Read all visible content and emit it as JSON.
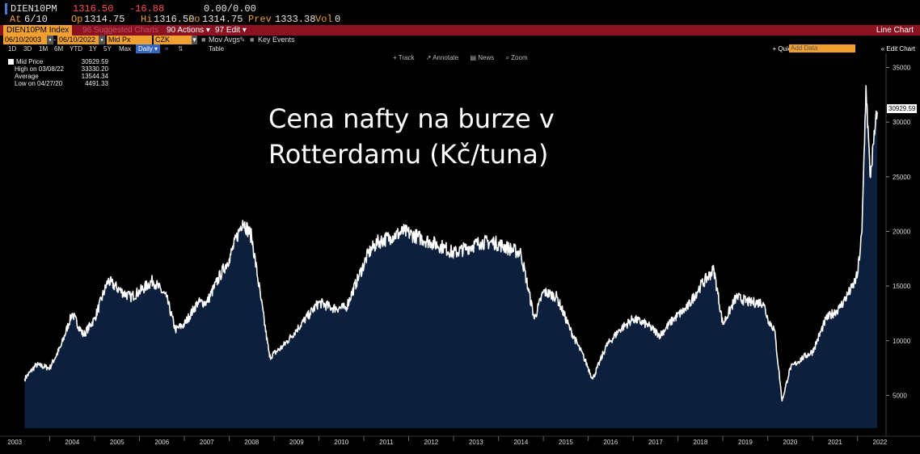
{
  "header": {
    "ticker": "DIEN10PM",
    "last": "1316.50",
    "change": "-16.88",
    "change2": "0.00/0.00",
    "at_label": "At",
    "at_value": "6/10",
    "op_label": "Op",
    "op_value": "1314.75",
    "hi_label": "Hi",
    "hi_value": "1316.50",
    "lo_label": "Lo",
    "lo_value": "1314.75",
    "prev_label": "Prev",
    "prev_value": "1333.38",
    "vol_label": "Vol",
    "vol_value": "0"
  },
  "toolbar": {
    "security": "DIEN10PM Index",
    "suggested": "96 Suggested Charts",
    "actions": "90 Actions ▾",
    "edit": "97 Edit ▾",
    "mode": "Line Chart"
  },
  "params": {
    "start_date": "06/10/2003",
    "end_date": "06/10/2022",
    "field": "Mid Px",
    "currency": "CZK",
    "mov_avgs": "Mov Avgs",
    "key_events": "Key Events"
  },
  "range": {
    "buttons": [
      "1D",
      "3D",
      "1M",
      "6M",
      "YTD",
      "1Y",
      "5Y",
      "Max"
    ],
    "period": "Daily ▾",
    "table": "Table",
    "quick_add": "+ Quick-Add ▾",
    "add_data": "Add Data",
    "edit_chart": "« Edit Chart"
  },
  "tools": [
    "+ Track",
    "↗ Annotate",
    "▤ News",
    "⌕ Zoom"
  ],
  "legend": [
    {
      "label": "Mid Price",
      "value": "30929.59"
    },
    {
      "label": "High on 03/08/22",
      "value": "33330.20"
    },
    {
      "label": "Average",
      "value": "13544.34"
    },
    {
      "label": "Low on 04/27/20",
      "value": "4491.33"
    }
  ],
  "overlay_title": "Cena nafty na burze v Rotterdamu (Kč/tuna)",
  "colors": {
    "fill": "#0c1f3d",
    "line": "#ffffff",
    "background": "#000000"
  },
  "chart_data": {
    "type": "area",
    "title": "",
    "ylim": [
      2000,
      36000
    ],
    "y_ticks": [
      5000,
      10000,
      15000,
      20000,
      25000,
      30000,
      35000
    ],
    "x_ticks": [
      "2003",
      "2004",
      "2005",
      "2006",
      "2007",
      "2008",
      "2009",
      "2010",
      "2011",
      "2012",
      "2013",
      "2014",
      "2015",
      "2016",
      "2017",
      "2018",
      "2019",
      "2020",
      "2021",
      "2022"
    ],
    "last_value_label": "30929.59",
    "series": [
      {
        "x": [
          2003.44,
          2003.7,
          2004.0,
          2004.25,
          2004.5,
          2004.75,
          2005.0,
          2005.3,
          2005.6,
          2005.8,
          2006.0,
          2006.3,
          2006.6,
          2006.8,
          2007.0,
          2007.3,
          2007.5,
          2007.8,
          2008.0,
          2008.3,
          2008.5,
          2008.7,
          2008.9,
          2009.2,
          2009.5,
          2009.8,
          2010.0,
          2010.3,
          2010.6,
          2010.9,
          2011.1,
          2011.3,
          2011.6,
          2011.9,
          2012.2,
          2012.5,
          2012.8,
          2013.0,
          2013.3,
          2013.6,
          2013.9,
          2014.2,
          2014.5,
          2014.8,
          2015.0,
          2015.3,
          2015.6,
          2015.9,
          2016.1,
          2016.4,
          2016.7,
          2017.0,
          2017.3,
          2017.6,
          2017.9,
          2018.2,
          2018.5,
          2018.8,
          2019.0,
          2019.3,
          2019.6,
          2019.9,
          2020.0,
          2020.15,
          2020.32,
          2020.5,
          2020.8,
          2021.0,
          2021.3,
          2021.6,
          2021.9,
          2022.0,
          2022.1,
          2022.19,
          2022.28,
          2022.36,
          2022.44
        ],
        "values": [
          6500,
          7800,
          7500,
          9500,
          12500,
          10500,
          12000,
          15500,
          14500,
          14000,
          14500,
          15500,
          14000,
          11000,
          11500,
          13500,
          13500,
          16000,
          17500,
          21000,
          19500,
          14000,
          8500,
          9500,
          11000,
          12500,
          13500,
          13000,
          13000,
          16000,
          18000,
          19000,
          19500,
          20000,
          19500,
          19000,
          18500,
          18000,
          18500,
          19000,
          19000,
          18500,
          18000,
          12000,
          14500,
          14000,
          11000,
          8500,
          6500,
          9500,
          11000,
          12000,
          11500,
          10500,
          12000,
          13000,
          15000,
          16500,
          11500,
          14000,
          13500,
          13500,
          12000,
          11000,
          4491,
          7500,
          8500,
          9000,
          12000,
          13000,
          15000,
          16000,
          20000,
          33330,
          25000,
          28000,
          30930
        ]
      }
    ]
  }
}
